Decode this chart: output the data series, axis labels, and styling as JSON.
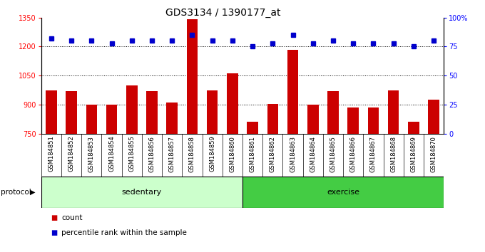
{
  "title": "GDS3134 / 1390177_at",
  "categories": [
    "GSM184851",
    "GSM184852",
    "GSM184853",
    "GSM184854",
    "GSM184855",
    "GSM184856",
    "GSM184857",
    "GSM184858",
    "GSM184859",
    "GSM184860",
    "GSM184861",
    "GSM184862",
    "GSM184863",
    "GSM184864",
    "GSM184865",
    "GSM184866",
    "GSM184867",
    "GSM184868",
    "GSM184869",
    "GSM184870"
  ],
  "bar_values": [
    975,
    970,
    900,
    900,
    1000,
    970,
    910,
    1340,
    975,
    1060,
    810,
    905,
    1185,
    900,
    970,
    885,
    885,
    975,
    810,
    925
  ],
  "percentile_values": [
    82,
    80,
    80,
    78,
    80,
    80,
    80,
    85,
    80,
    80,
    75,
    78,
    85,
    78,
    80,
    78,
    78,
    78,
    75,
    80
  ],
  "bar_color": "#cc0000",
  "dot_color": "#0000cc",
  "ylim_left": [
    750,
    1350
  ],
  "ylim_right": [
    0,
    100
  ],
  "yticks_left": [
    750,
    900,
    1050,
    1200,
    1350
  ],
  "yticks_right": [
    0,
    25,
    50,
    75,
    100
  ],
  "grid_values": [
    900,
    1050,
    1200
  ],
  "sedentary_color": "#ccffcc",
  "exercise_color": "#44cc44",
  "sedentary_label": "sedentary",
  "exercise_label": "exercise",
  "protocol_label": "protocol",
  "legend_count_label": "count",
  "legend_pct_label": "percentile rank within the sample",
  "bar_width": 0.55,
  "cell_bg_color": "#d8d8d8"
}
